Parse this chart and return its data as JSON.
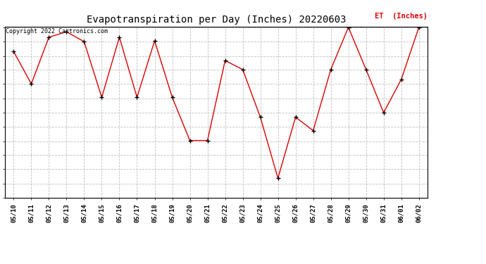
{
  "title": "Evapotranspiration per Day (Inches) 20220603",
  "copyright_text": "Copyright 2022 Cartronics.com",
  "legend_label": "ET  (Inches)",
  "dates": [
    "05/10",
    "05/11",
    "05/12",
    "05/13",
    "05/14",
    "05/15",
    "05/16",
    "05/17",
    "05/18",
    "05/19",
    "05/20",
    "05/21",
    "05/22",
    "05/23",
    "05/24",
    "05/25",
    "05/26",
    "05/27",
    "05/28",
    "05/29",
    "05/30",
    "05/31",
    "06/01",
    "06/02"
  ],
  "values": [
    0.163,
    0.127,
    0.179,
    0.185,
    0.174,
    0.112,
    0.179,
    0.112,
    0.175,
    0.112,
    0.064,
    0.064,
    0.153,
    0.143,
    0.09,
    0.022,
    0.09,
    0.075,
    0.143,
    0.19,
    0.143,
    0.095,
    0.132,
    0.19
  ],
  "line_color": "#dd0000",
  "marker_color": "#000000",
  "bg_color": "#ffffff",
  "grid_color": "#c0c0c0",
  "ylim_min": 0.0,
  "ylim_max": 0.19,
  "yticks": [
    0.0,
    0.016,
    0.032,
    0.048,
    0.063,
    0.079,
    0.095,
    0.111,
    0.127,
    0.143,
    0.158,
    0.174,
    0.19
  ],
  "title_fontsize": 10,
  "tick_fontsize": 6.5,
  "legend_fontsize": 7.5,
  "copyright_fontsize": 6
}
